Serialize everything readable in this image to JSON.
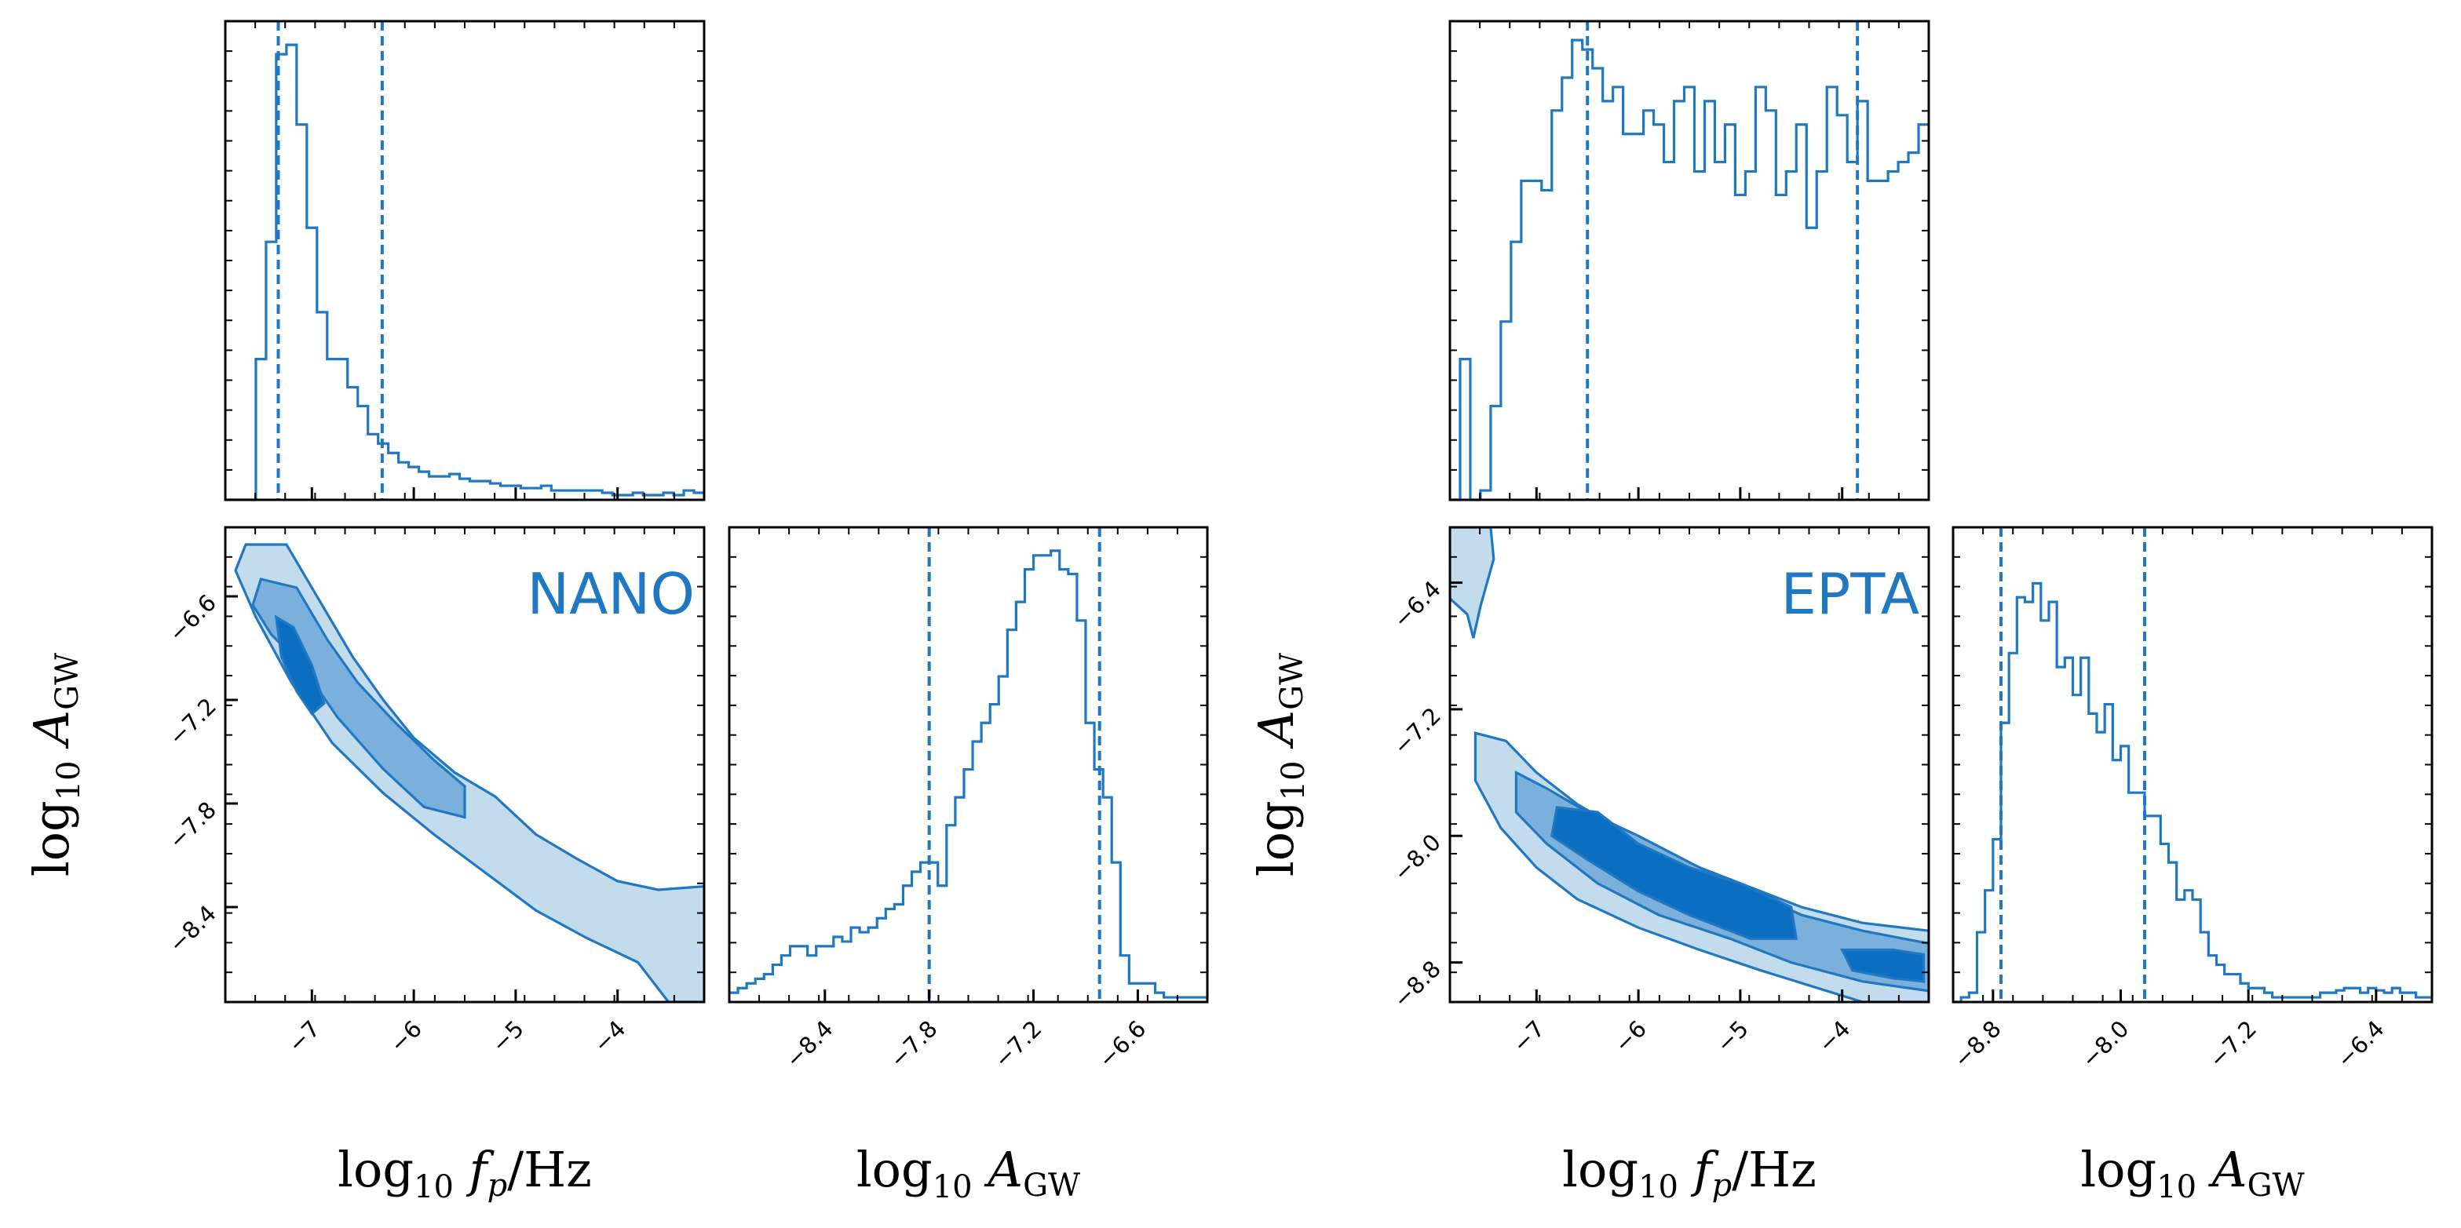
{
  "colors": {
    "line": "#1f78c1",
    "fill_outer": "#c2dcee",
    "fill_mid": "#7cb0dc",
    "fill_inner": "#0a6ec1",
    "panel_label": "#1f78c1",
    "axis": "#000000"
  },
  "chart_data": [
    {
      "type": "corner",
      "label": "NANO",
      "axis_labels": {
        "freq": {
          "main": "log",
          "sub": "10",
          "var": "f",
          "var_sub": "p",
          "suffix": "/Hz"
        },
        "amp": {
          "main": "log",
          "sub": "10",
          "var": "A",
          "var_sub": "GW",
          "suffix": ""
        }
      },
      "freq_range": [
        -7.85,
        -3.15
      ],
      "amp_range": [
        -8.95,
        -6.2
      ],
      "freq_ticks": [
        {
          "value": -7,
          "label": "−7"
        },
        {
          "value": -6,
          "label": "−6"
        },
        {
          "value": -5,
          "label": "−5"
        },
        {
          "value": -4,
          "label": "−4"
        }
      ],
      "amp_ticks": [
        {
          "value": -6.6,
          "label": "−6.6"
        },
        {
          "value": -7.2,
          "label": "−7.2"
        },
        {
          "value": -7.8,
          "label": "−7.8"
        },
        {
          "value": -8.4,
          "label": "−8.4"
        }
      ],
      "freq_quantiles": [
        -7.33,
        -6.31
      ],
      "amp_quantiles": [
        -7.8,
        -6.82
      ],
      "freq_hist": {
        "start": -7.85,
        "bin_width": 0.1,
        "counts": [
          0.0,
          0.0,
          0.0,
          0.3,
          0.55,
          0.95,
          0.97,
          0.8,
          0.58,
          0.4,
          0.3,
          0.3,
          0.24,
          0.2,
          0.14,
          0.12,
          0.1,
          0.08,
          0.07,
          0.06,
          0.05,
          0.05,
          0.055,
          0.045,
          0.04,
          0.04,
          0.035,
          0.03,
          0.03,
          0.025,
          0.025,
          0.03,
          0.02,
          0.02,
          0.02,
          0.02,
          0.02,
          0.015,
          0.01,
          0.01,
          0.015,
          0.01,
          0.01,
          0.015,
          0.01,
          0.02,
          0.015
        ]
      },
      "amp_hist": {
        "start": -8.95,
        "bin_width": 0.05,
        "counts": [
          0.02,
          0.03,
          0.04,
          0.05,
          0.06,
          0.08,
          0.1,
          0.12,
          0.12,
          0.1,
          0.12,
          0.12,
          0.14,
          0.13,
          0.16,
          0.15,
          0.16,
          0.18,
          0.2,
          0.21,
          0.25,
          0.28,
          0.3,
          0.3,
          0.25,
          0.38,
          0.44,
          0.5,
          0.56,
          0.6,
          0.64,
          0.7,
          0.8,
          0.86,
          0.93,
          0.96,
          0.96,
          0.97,
          0.93,
          0.92,
          0.82,
          0.6,
          0.5,
          0.44,
          0.3,
          0.1,
          0.04,
          0.04,
          0.04,
          0.02,
          0.01,
          0.01,
          0.01,
          0.01,
          0.01
        ]
      },
      "contour_outer": [
        [
          -7.65,
          -6.3
        ],
        [
          -7.25,
          -6.3
        ],
        [
          -6.95,
          -6.6
        ],
        [
          -6.6,
          -6.95
        ],
        [
          -6.3,
          -7.2
        ],
        [
          -6.0,
          -7.42
        ],
        [
          -5.6,
          -7.62
        ],
        [
          -5.2,
          -7.76
        ],
        [
          -4.8,
          -7.98
        ],
        [
          -4.4,
          -8.12
        ],
        [
          -4.0,
          -8.25
        ],
        [
          -3.6,
          -8.3
        ],
        [
          -3.15,
          -8.28
        ],
        [
          -3.15,
          -8.95
        ],
        [
          -3.5,
          -8.95
        ],
        [
          -3.8,
          -8.72
        ],
        [
          -4.3,
          -8.58
        ],
        [
          -4.8,
          -8.42
        ],
        [
          -5.3,
          -8.2
        ],
        [
          -5.8,
          -7.98
        ],
        [
          -6.3,
          -7.74
        ],
        [
          -6.8,
          -7.45
        ],
        [
          -7.2,
          -7.1
        ],
        [
          -7.55,
          -6.72
        ],
        [
          -7.75,
          -6.45
        ]
      ],
      "contour_mid": [
        [
          -7.5,
          -6.5
        ],
        [
          -7.15,
          -6.55
        ],
        [
          -6.85,
          -6.85
        ],
        [
          -6.55,
          -7.1
        ],
        [
          -6.2,
          -7.32
        ],
        [
          -5.8,
          -7.55
        ],
        [
          -5.5,
          -7.7
        ],
        [
          -5.5,
          -7.88
        ],
        [
          -5.9,
          -7.82
        ],
        [
          -6.3,
          -7.6
        ],
        [
          -6.75,
          -7.3
        ],
        [
          -7.1,
          -7.0
        ],
        [
          -7.4,
          -6.82
        ],
        [
          -7.58,
          -6.65
        ]
      ],
      "contour_inner": [
        [
          -7.35,
          -6.72
        ],
        [
          -7.18,
          -6.78
        ],
        [
          -7.0,
          -7.0
        ],
        [
          -6.88,
          -7.22
        ],
        [
          -7.0,
          -7.28
        ],
        [
          -7.15,
          -7.15
        ],
        [
          -7.3,
          -6.95
        ]
      ],
      "label_pos": "top-right"
    },
    {
      "type": "corner",
      "label": "EPTA",
      "axis_labels": {
        "freq": {
          "main": "log",
          "sub": "10",
          "var": "f",
          "var_sub": "p",
          "suffix": "/Hz"
        },
        "amp": {
          "main": "log",
          "sub": "10",
          "var": "A",
          "var_sub": "GW",
          "suffix": ""
        }
      },
      "freq_range": [
        -7.85,
        -3.15
      ],
      "amp_range": [
        -9.05,
        -6.05
      ],
      "freq_ticks": [
        {
          "value": -7,
          "label": "−7"
        },
        {
          "value": -6,
          "label": "−6"
        },
        {
          "value": -5,
          "label": "−5"
        },
        {
          "value": -4,
          "label": "−4"
        }
      ],
      "amp_ticks": [
        {
          "value": -6.4,
          "label": "−6.4"
        },
        {
          "value": -7.2,
          "label": "−7.2"
        },
        {
          "value": -8.0,
          "label": "−8.0"
        },
        {
          "value": -8.8,
          "label": "−8.8"
        }
      ],
      "freq_quantiles": [
        -6.5,
        -3.85
      ],
      "amp_quantiles": [
        -8.75,
        -7.85
      ],
      "freq_hist": {
        "start": -7.85,
        "bin_width": 0.1,
        "counts": [
          0.0,
          0.3,
          0.0,
          0.02,
          0.2,
          0.38,
          0.55,
          0.68,
          0.68,
          0.66,
          0.83,
          0.9,
          0.98,
          0.96,
          0.92,
          0.85,
          0.88,
          0.78,
          0.78,
          0.83,
          0.8,
          0.72,
          0.85,
          0.88,
          0.7,
          0.85,
          0.72,
          0.8,
          0.65,
          0.7,
          0.88,
          0.83,
          0.65,
          0.7,
          0.8,
          0.58,
          0.7,
          0.88,
          0.82,
          0.72,
          0.85,
          0.68,
          0.68,
          0.7,
          0.72,
          0.74,
          0.8
        ]
      },
      "amp_hist": {
        "start": -9.05,
        "bin_width": 0.05,
        "counts": [
          0.0,
          0.01,
          0.02,
          0.15,
          0.24,
          0.35,
          0.6,
          0.75,
          0.87,
          0.86,
          0.9,
          0.82,
          0.86,
          0.72,
          0.74,
          0.66,
          0.74,
          0.62,
          0.58,
          0.64,
          0.52,
          0.55,
          0.45,
          0.45,
          0.4,
          0.4,
          0.34,
          0.3,
          0.22,
          0.24,
          0.22,
          0.15,
          0.1,
          0.08,
          0.06,
          0.06,
          0.04,
          0.03,
          0.03,
          0.02,
          0.01,
          0.01,
          0.01,
          0.01,
          0.01,
          0.01,
          0.02,
          0.02,
          0.025,
          0.03,
          0.03,
          0.02,
          0.03,
          0.025,
          0.02,
          0.03,
          0.02,
          0.02,
          0.01,
          0.01
        ]
      },
      "contour_outer": [
        [
          -7.6,
          -7.35
        ],
        [
          -7.3,
          -7.4
        ],
        [
          -7.0,
          -7.6
        ],
        [
          -6.6,
          -7.8
        ],
        [
          -6.2,
          -7.95
        ],
        [
          -5.6,
          -8.15
        ],
        [
          -5.0,
          -8.3
        ],
        [
          -4.4,
          -8.45
        ],
        [
          -3.8,
          -8.55
        ],
        [
          -3.15,
          -8.6
        ],
        [
          -3.15,
          -9.05
        ],
        [
          -3.8,
          -9.05
        ],
        [
          -4.3,
          -8.95
        ],
        [
          -4.8,
          -8.85
        ],
        [
          -5.4,
          -8.72
        ],
        [
          -6.0,
          -8.58
        ],
        [
          -6.6,
          -8.4
        ],
        [
          -7.0,
          -8.2
        ],
        [
          -7.35,
          -7.95
        ],
        [
          -7.6,
          -7.65
        ]
      ],
      "contour_outer_corner": [
        [
          -7.85,
          -6.05
        ],
        [
          -7.45,
          -6.05
        ],
        [
          -7.42,
          -6.25
        ],
        [
          -7.55,
          -6.55
        ],
        [
          -7.62,
          -6.75
        ],
        [
          -7.68,
          -6.6
        ],
        [
          -7.85,
          -6.5
        ]
      ],
      "contour_mid": [
        [
          -7.2,
          -7.6
        ],
        [
          -6.9,
          -7.7
        ],
        [
          -6.5,
          -7.85
        ],
        [
          -6.0,
          -8.0
        ],
        [
          -5.4,
          -8.2
        ],
        [
          -4.9,
          -8.35
        ],
        [
          -4.4,
          -8.5
        ],
        [
          -3.8,
          -8.6
        ],
        [
          -3.15,
          -8.68
        ],
        [
          -3.15,
          -8.98
        ],
        [
          -3.8,
          -8.92
        ],
        [
          -4.5,
          -8.8
        ],
        [
          -5.1,
          -8.65
        ],
        [
          -5.8,
          -8.5
        ],
        [
          -6.4,
          -8.3
        ],
        [
          -6.9,
          -8.05
        ],
        [
          -7.2,
          -7.85
        ]
      ],
      "contour_inner": [
        [
          -6.8,
          -7.82
        ],
        [
          -6.4,
          -7.85
        ],
        [
          -6.0,
          -8.05
        ],
        [
          -5.5,
          -8.2
        ],
        [
          -5.0,
          -8.3
        ],
        [
          -4.5,
          -8.45
        ],
        [
          -4.45,
          -8.65
        ],
        [
          -4.9,
          -8.65
        ],
        [
          -5.5,
          -8.5
        ],
        [
          -6.0,
          -8.35
        ],
        [
          -6.5,
          -8.15
        ],
        [
          -6.85,
          -8.0
        ]
      ],
      "contour_inner2": [
        [
          -4.0,
          -8.72
        ],
        [
          -3.5,
          -8.72
        ],
        [
          -3.2,
          -8.75
        ],
        [
          -3.2,
          -8.92
        ],
        [
          -3.5,
          -8.9
        ],
        [
          -3.9,
          -8.85
        ]
      ],
      "label_pos": "top-right"
    }
  ]
}
